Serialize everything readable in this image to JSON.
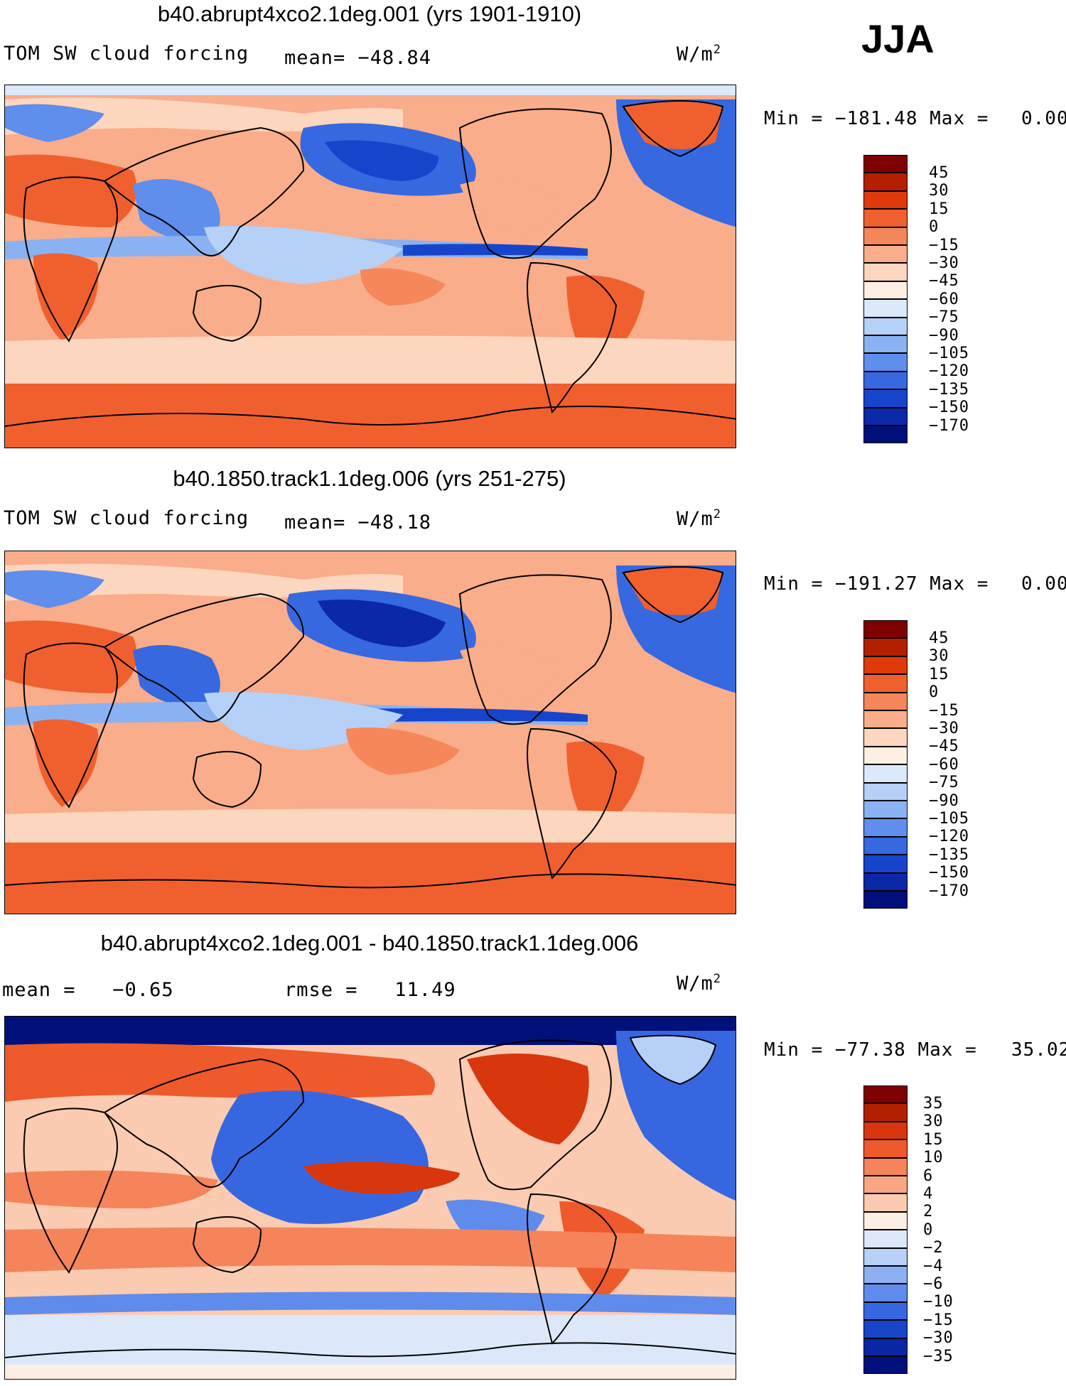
{
  "season": "JJA",
  "panels": [
    {
      "id": "p1",
      "title": "b40.abrupt4xco2.1deg.001 (yrs 1901-1910)",
      "left_label": "TOM SW cloud forcing",
      "mid_label": "mean= −48.84",
      "units": "W/m",
      "units_sup": "2",
      "minmax": "Min = −181.48 Max =",
      "maxval": "0.00",
      "levels": [
        "45",
        "30",
        "15",
        "0",
        "−15",
        "−30",
        "−45",
        "−60",
        "−75",
        "−90",
        "−105",
        "−120",
        "−135",
        "−150",
        "−170"
      ]
    },
    {
      "id": "p2",
      "title": "b40.1850.track1.1deg.006 (yrs 251-275)",
      "left_label": "TOM SW cloud forcing",
      "mid_label": "mean= −48.18",
      "units": "W/m",
      "units_sup": "2",
      "minmax": "Min = −191.27 Max =",
      "maxval": "0.00",
      "levels": [
        "45",
        "30",
        "15",
        "0",
        "−15",
        "−30",
        "−45",
        "−60",
        "−75",
        "−90",
        "−105",
        "−120",
        "−135",
        "−150",
        "−170"
      ]
    },
    {
      "id": "p3",
      "title": "b40.abrupt4xco2.1deg.001 - b40.1850.track1.1deg.006",
      "left_label": "mean =   −0.65",
      "mid_label": "rmse =   11.49",
      "units": "W/m",
      "units_sup": "2",
      "minmax": "Min = −77.38 Max =",
      "maxval": "35.02",
      "levels": [
        "35",
        "30",
        "15",
        "10",
        "6",
        "4",
        "2",
        "0",
        "−2",
        "−4",
        "−6",
        "−10",
        "−15",
        "−30",
        "−35"
      ]
    }
  ],
  "colors": {
    "abs_scale": [
      "#7f0000",
      "#b22000",
      "#e03a0c",
      "#f0602e",
      "#f5875a",
      "#f9ad8a",
      "#fcd6be",
      "#fdf0e3",
      "#dce9fa",
      "#b5d1f7",
      "#8ab2f2",
      "#5f8eec",
      "#3668e0",
      "#1645cc",
      "#0a28a8",
      "#00107a"
    ],
    "diff_scale": [
      "#7f0000",
      "#b22000",
      "#d8360c",
      "#ee5a2c",
      "#f5845a",
      "#f8a683",
      "#fbcbb1",
      "#fdeee3",
      "#dce8fa",
      "#b7d0f7",
      "#8cb0f2",
      "#5f8cec",
      "#3767e0",
      "#1844c8",
      "#0a26a2",
      "#00107a"
    ]
  }
}
